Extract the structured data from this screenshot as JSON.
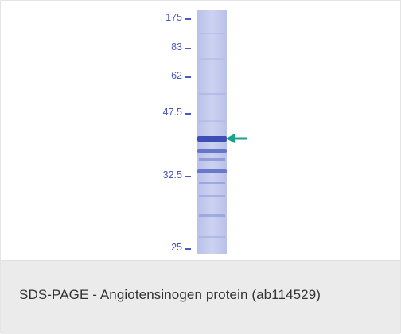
{
  "figure": {
    "marker_labels": [
      "175",
      "83",
      "62",
      "47.5",
      "32.5",
      "25"
    ],
    "arrow_color": "#1aa38a",
    "marker_color": "#4a57c8",
    "lane_color": "#c5cbec",
    "arrow_icon": "arrow-left-icon"
  },
  "caption": {
    "text": "SDS-PAGE - Angiotensinogen protein (ab114529)"
  }
}
